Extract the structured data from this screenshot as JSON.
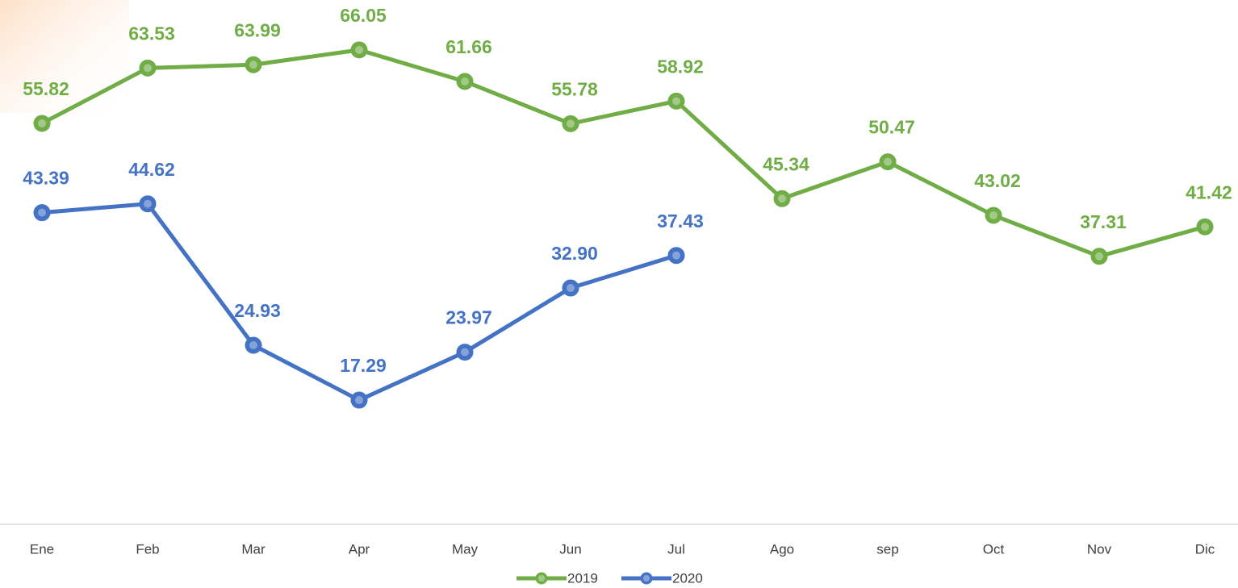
{
  "chart_data": {
    "type": "line",
    "categories": [
      "Ene",
      "Feb",
      "Mar",
      "Apr",
      "May",
      "Jun",
      "Jul",
      "Ago",
      "sep",
      "Oct",
      "Nov",
      "Dic"
    ],
    "series": [
      {
        "name": "2019",
        "color": "#70ad47",
        "values": [
          55.82,
          63.53,
          63.99,
          66.05,
          61.66,
          55.78,
          58.92,
          45.34,
          50.47,
          43.02,
          37.31,
          41.42
        ],
        "value_labels": [
          "55.82",
          "63.53",
          "63.99",
          "66.05",
          "61.66",
          "55.78",
          "58.92",
          "45.34",
          "50.47",
          "43.02",
          "37.31",
          "41.42"
        ]
      },
      {
        "name": "2020",
        "color": "#4472c4",
        "values": [
          43.39,
          44.62,
          24.93,
          17.29,
          23.97,
          32.9,
          37.43,
          null,
          null,
          null,
          null,
          null
        ],
        "value_labels": [
          "43.39",
          "44.62",
          "24.93",
          "17.29",
          "23.97",
          "32.90",
          "37.43",
          null,
          null,
          null,
          null,
          null
        ]
      }
    ],
    "ylim": [
      0,
      73
    ],
    "grid": false,
    "legend": "bottom"
  }
}
